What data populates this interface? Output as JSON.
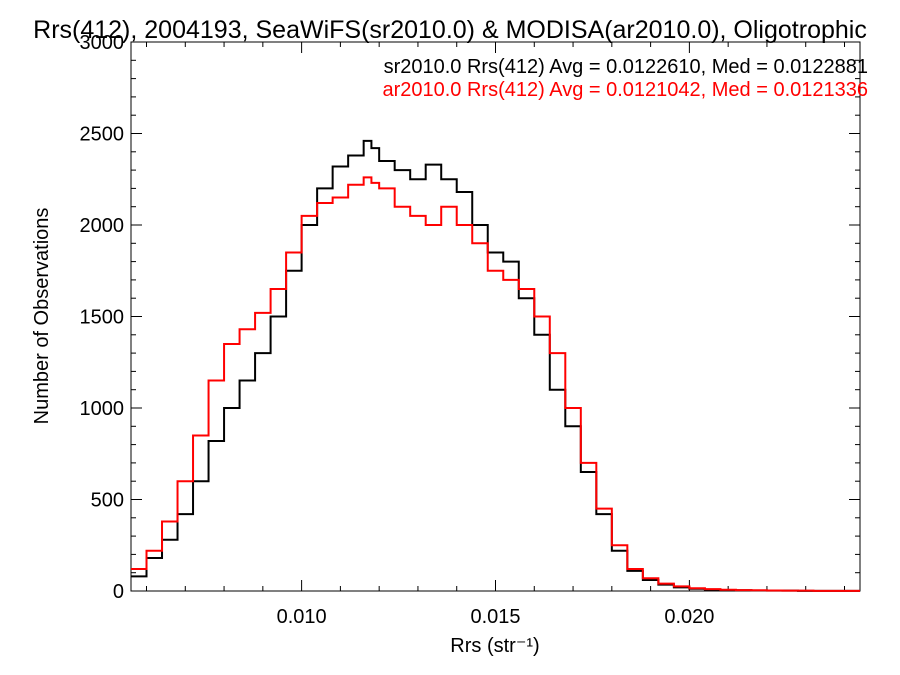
{
  "chart_data": {
    "type": "line",
    "title": "Rrs(412), 2004193, SeaWiFS(sr2010.0) & MODISA(ar2010.0), Oligotrophic",
    "xlabel": "Rrs (str⁻¹)",
    "ylabel": "Number of Observations",
    "xlim": [
      0.0056,
      0.0244
    ],
    "ylim": [
      0,
      3000
    ],
    "xticks": [
      0.01,
      0.015,
      0.02
    ],
    "xtick_labels": [
      "0.010",
      "0.015",
      "0.020"
    ],
    "yticks": [
      0,
      500,
      1000,
      1500,
      2000,
      2500,
      3000
    ],
    "ytick_labels": [
      "0",
      "500",
      "1000",
      "1500",
      "2000",
      "2500",
      "3000"
    ],
    "grid": false,
    "legend_position": "top-right",
    "series": [
      {
        "name": "sr2010.0 Rrs(412) Avg = 0.0122610, Med = 0.0122881",
        "color": "#000000",
        "step": true,
        "x": [
          0.0056,
          0.006,
          0.0064,
          0.0068,
          0.0072,
          0.0076,
          0.008,
          0.0084,
          0.0088,
          0.0092,
          0.0096,
          0.01,
          0.0104,
          0.0108,
          0.0112,
          0.0116,
          0.0118,
          0.012,
          0.0124,
          0.0128,
          0.0132,
          0.0136,
          0.014,
          0.0144,
          0.0148,
          0.0152,
          0.0156,
          0.016,
          0.0164,
          0.0168,
          0.0172,
          0.0176,
          0.018,
          0.0184,
          0.0188,
          0.0192,
          0.0196,
          0.02,
          0.0204,
          0.0208,
          0.0212,
          0.0216,
          0.022,
          0.0224,
          0.0228,
          0.0232,
          0.0236,
          0.024,
          0.0244
        ],
        "y": [
          80,
          180,
          280,
          420,
          600,
          820,
          1000,
          1150,
          1300,
          1500,
          1750,
          2000,
          2200,
          2320,
          2380,
          2460,
          2420,
          2350,
          2300,
          2250,
          2330,
          2250,
          2180,
          2000,
          1850,
          1800,
          1600,
          1400,
          1100,
          900,
          650,
          420,
          220,
          110,
          60,
          35,
          20,
          12,
          8,
          5,
          4,
          3,
          2,
          2,
          1,
          1,
          1,
          1,
          1
        ]
      },
      {
        "name": "ar2010.0 Rrs(412) Avg = 0.0121042, Med = 0.0121336",
        "color": "#ff0000",
        "step": true,
        "x": [
          0.0056,
          0.006,
          0.0064,
          0.0068,
          0.0072,
          0.0076,
          0.008,
          0.0084,
          0.0088,
          0.0092,
          0.0096,
          0.01,
          0.0104,
          0.0108,
          0.0112,
          0.0116,
          0.0118,
          0.012,
          0.0124,
          0.0128,
          0.0132,
          0.0136,
          0.014,
          0.0144,
          0.0148,
          0.0152,
          0.0156,
          0.016,
          0.0164,
          0.0168,
          0.0172,
          0.0176,
          0.018,
          0.0184,
          0.0188,
          0.0192,
          0.0196,
          0.02,
          0.0204,
          0.0208,
          0.0212,
          0.0216,
          0.022,
          0.0224,
          0.0228,
          0.0232,
          0.0236,
          0.024,
          0.0244
        ],
        "y": [
          120,
          220,
          380,
          600,
          850,
          1150,
          1350,
          1430,
          1520,
          1650,
          1850,
          2050,
          2120,
          2150,
          2220,
          2260,
          2230,
          2200,
          2100,
          2050,
          2000,
          2100,
          2000,
          1900,
          1750,
          1700,
          1650,
          1500,
          1300,
          1000,
          700,
          450,
          250,
          120,
          70,
          40,
          25,
          15,
          10,
          7,
          5,
          4,
          3,
          2,
          2,
          1,
          1,
          1,
          1
        ]
      }
    ]
  }
}
